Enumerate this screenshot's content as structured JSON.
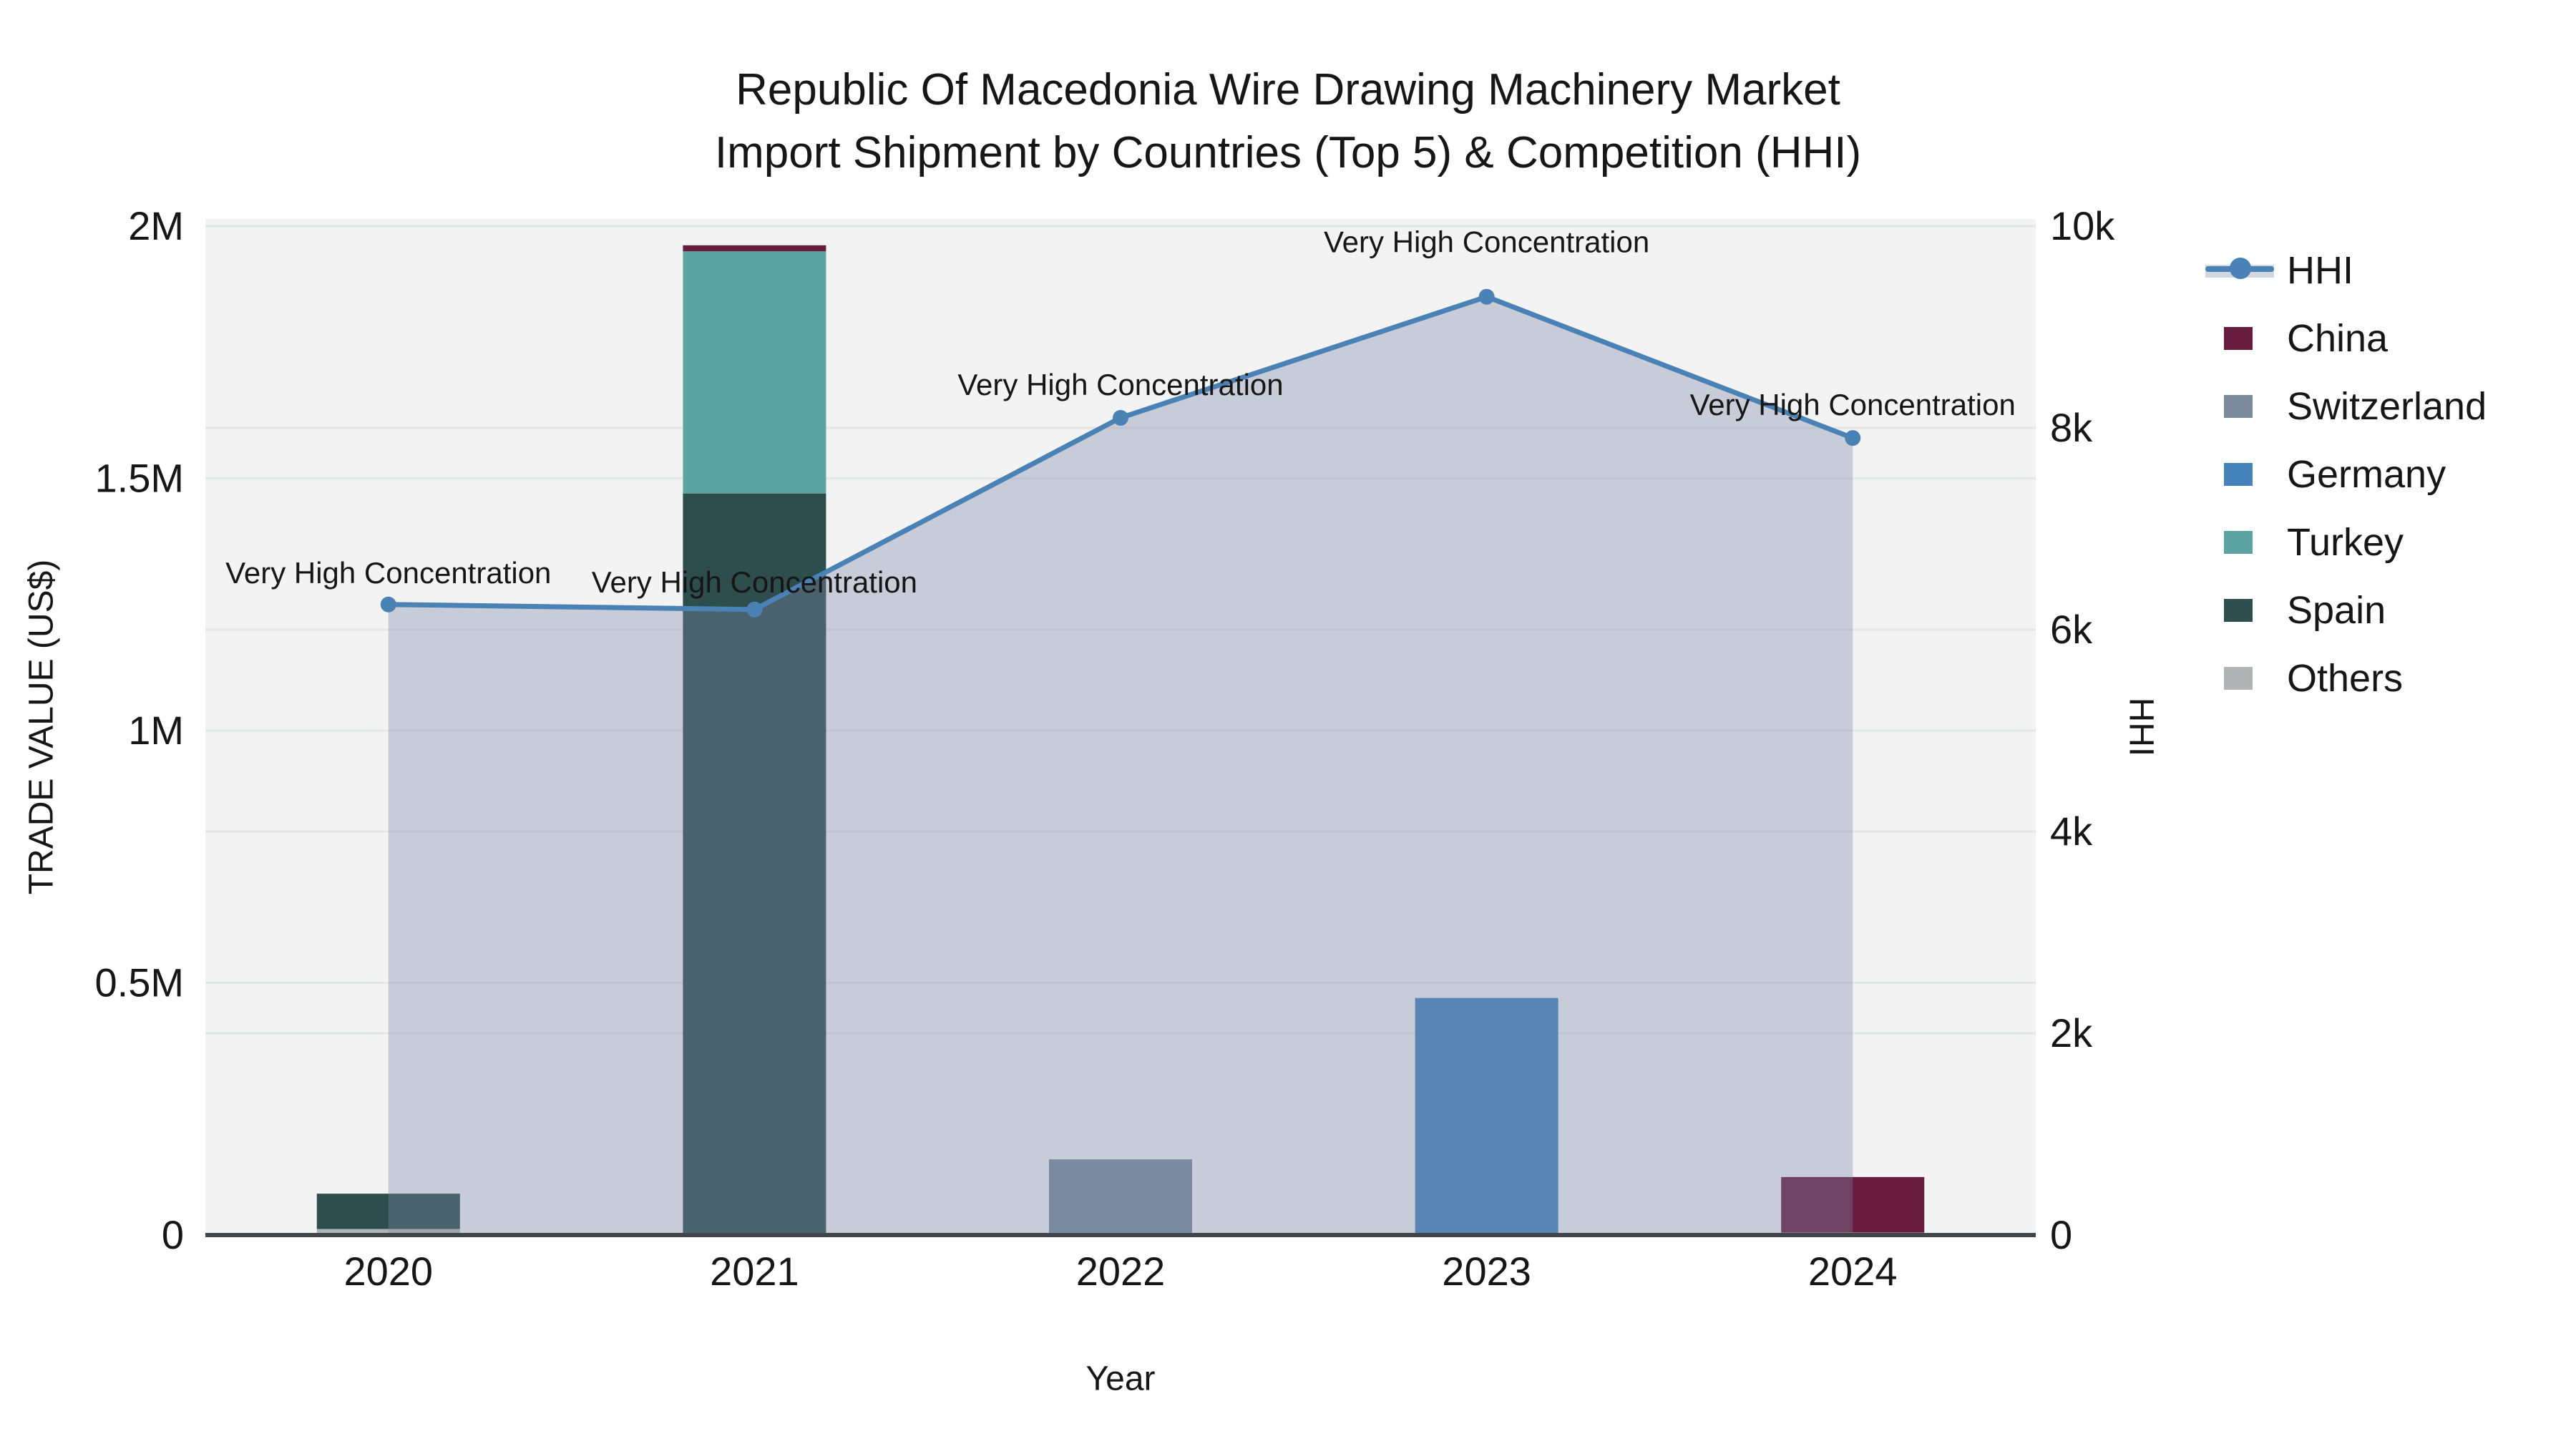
{
  "title": {
    "line1": "Republic Of Macedonia Wire Drawing Machinery Market",
    "line2": "Import Shipment by Countries (Top 5) & Competition (HHI)"
  },
  "axes": {
    "x_title": "Year",
    "y_left_title": "TRADE VALUE (US$)",
    "y_right_title": "HHI",
    "y_left_ticks": [
      {
        "value": 0,
        "label": "0"
      },
      {
        "value": 500000,
        "label": "0.5M"
      },
      {
        "value": 1000000,
        "label": "1M"
      },
      {
        "value": 1500000,
        "label": "1.5M"
      },
      {
        "value": 2000000,
        "label": "2M"
      }
    ],
    "y_right_ticks": [
      {
        "value": 0,
        "label": "0"
      },
      {
        "value": 2000,
        "label": "2k"
      },
      {
        "value": 4000,
        "label": "4k"
      },
      {
        "value": 6000,
        "label": "6k"
      },
      {
        "value": 8000,
        "label": "8k"
      },
      {
        "value": 10000,
        "label": "10k"
      }
    ]
  },
  "chart_data": {
    "type": "combo: stacked bars (left axis) + area line (right axis)",
    "title": "Republic Of Macedonia Wire Drawing Machinery Market Import Shipment by Countries (Top 5) & Competition (HHI)",
    "xlabel": "Year",
    "ylabel_left": "TRADE VALUE (US$)",
    "ylabel_right": "HHI",
    "ylim_left": [
      0,
      2000000
    ],
    "ylim_right": [
      0,
      10000
    ],
    "grid": true,
    "legend_position": "right",
    "categories": [
      "2020",
      "2021",
      "2022",
      "2023",
      "2024"
    ],
    "bar_series_bottom_to_top": [
      {
        "name": "Others",
        "color": "#b1b4b5",
        "values": [
          12000,
          0,
          0,
          0,
          5000
        ]
      },
      {
        "name": "Spain",
        "color": "#2d4e4d",
        "values": [
          70000,
          1470000,
          0,
          0,
          0
        ]
      },
      {
        "name": "Turkey",
        "color": "#5da3a2",
        "values": [
          0,
          480000,
          5000,
          0,
          0
        ]
      },
      {
        "name": "Germany",
        "color": "#4583ba",
        "values": [
          0,
          0,
          0,
          470000,
          0
        ]
      },
      {
        "name": "Switzerland",
        "color": "#7b8a9d",
        "values": [
          0,
          0,
          145000,
          0,
          0
        ]
      },
      {
        "name": "China",
        "color": "#681d3e",
        "values": [
          0,
          12000,
          0,
          0,
          110000
        ]
      }
    ],
    "hhi_series": {
      "name": "HHI",
      "line_color": "#4a82b6",
      "area_color": "#7e89a8",
      "area_opacity": 0.36,
      "values": [
        6250,
        6200,
        8100,
        9300,
        7900
      ],
      "annotations": [
        "Very High Concentration",
        "Very High Concentration",
        "Very High Concentration",
        "Very High Concentration",
        "Very High Concentration"
      ]
    },
    "legend_order": [
      "HHI",
      "China",
      "Switzerland",
      "Germany",
      "Turkey",
      "Spain",
      "Others"
    ]
  },
  "colors": {
    "plot_bg": "#f2f3f2",
    "gridline": "#e4e6e6",
    "axis_line": "#40454a",
    "text": "#161616",
    "hhi_line": "#4a82b6"
  }
}
